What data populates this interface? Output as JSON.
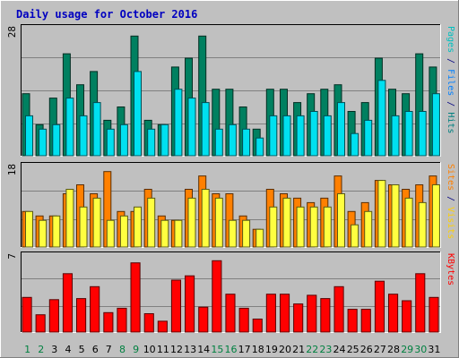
{
  "chart_data": {
    "type": "bar",
    "title": "Daily usage for October 2016",
    "categories": [
      "1",
      "2",
      "3",
      "4",
      "5",
      "6",
      "7",
      "8",
      "9",
      "10",
      "11",
      "12",
      "13",
      "14",
      "15",
      "16",
      "17",
      "18",
      "19",
      "20",
      "21",
      "22",
      "23",
      "24",
      "25",
      "26",
      "27",
      "28",
      "29",
      "30",
      "31"
    ],
    "weekend_days": [
      1,
      2,
      8,
      9,
      15,
      16,
      22,
      23,
      29,
      30
    ],
    "panels": [
      {
        "id": "hits-files-pages",
        "ymax_label": "28",
        "ymax": 28,
        "right_labels": [
          {
            "text": "Pages",
            "color": "#00C0C0"
          },
          {
            "text": " / ",
            "color": "#000080"
          },
          {
            "text": "Files",
            "color": "#0080FF"
          },
          {
            "text": " / ",
            "color": "#000080"
          },
          {
            "text": "Hits",
            "color": "#008080"
          }
        ],
        "series": [
          {
            "name": "Hits",
            "color": "#008060",
            "values": [
              14,
              7,
              13,
              23,
              16,
              19,
              8,
              11,
              27,
              8,
              7,
              20,
              22,
              27,
              15,
              15,
              11,
              6,
              15,
              15,
              12,
              14,
              15,
              16,
              10,
              12,
              22,
              15,
              14,
              23,
              20
            ]
          },
          {
            "name": "Files",
            "color": "#00E0F0",
            "values": [
              9,
              6,
              7,
              13,
              9,
              12,
              6,
              7,
              19,
              6,
              7,
              15,
              13,
              12,
              6,
              7,
              6,
              4,
              9,
              9,
              9,
              10,
              9,
              12,
              5,
              8,
              17,
              9,
              10,
              10,
              14
            ]
          }
        ]
      },
      {
        "id": "visits-sites",
        "ymax_label": "18",
        "ymax": 18,
        "right_labels": [
          {
            "text": "Sites",
            "color": "#FF8000"
          },
          {
            "text": " / ",
            "color": "#000080"
          },
          {
            "text": "Visits",
            "color": "#FFD000"
          }
        ],
        "series": [
          {
            "name": "Visits",
            "color": "#FF8000",
            "values": [
              8,
              7,
              7,
              12,
              14,
              12,
              17,
              8,
              8,
              13,
              7,
              6,
              13,
              16,
              12,
              12,
              7,
              4,
              13,
              12,
              11,
              10,
              11,
              16,
              8,
              10,
              15,
              14,
              13,
              14,
              16
            ]
          },
          {
            "name": "Sites",
            "color": "#FFFF40",
            "values": [
              8,
              6,
              7,
              13,
              9,
              11,
              6,
              7,
              9,
              11,
              6,
              6,
              11,
              13,
              11,
              6,
              6,
              4,
              9,
              11,
              9,
              9,
              9,
              12,
              5,
              8,
              15,
              14,
              11,
              10,
              14
            ]
          }
        ]
      },
      {
        "id": "kbytes",
        "ymax_label": "7",
        "ymax": 7,
        "right_labels": [
          {
            "text": "KBytes",
            "color": "#FF0000"
          }
        ],
        "series": [
          {
            "name": "KBytes",
            "color": "#FF0000",
            "values": [
              3.2,
              1.6,
              3,
              5.4,
              3.1,
              4.2,
              1.8,
              2.2,
              6.4,
              1.7,
              1,
              4.8,
              5.2,
              2.3,
              6.6,
              3.5,
              2.2,
              1.2,
              3.5,
              3.5,
              2.6,
              3.4,
              3.1,
              4.2,
              2.1,
              2.1,
              4.7,
              3.5,
              2.9,
              5.4,
              3.2
            ]
          }
        ]
      }
    ]
  }
}
